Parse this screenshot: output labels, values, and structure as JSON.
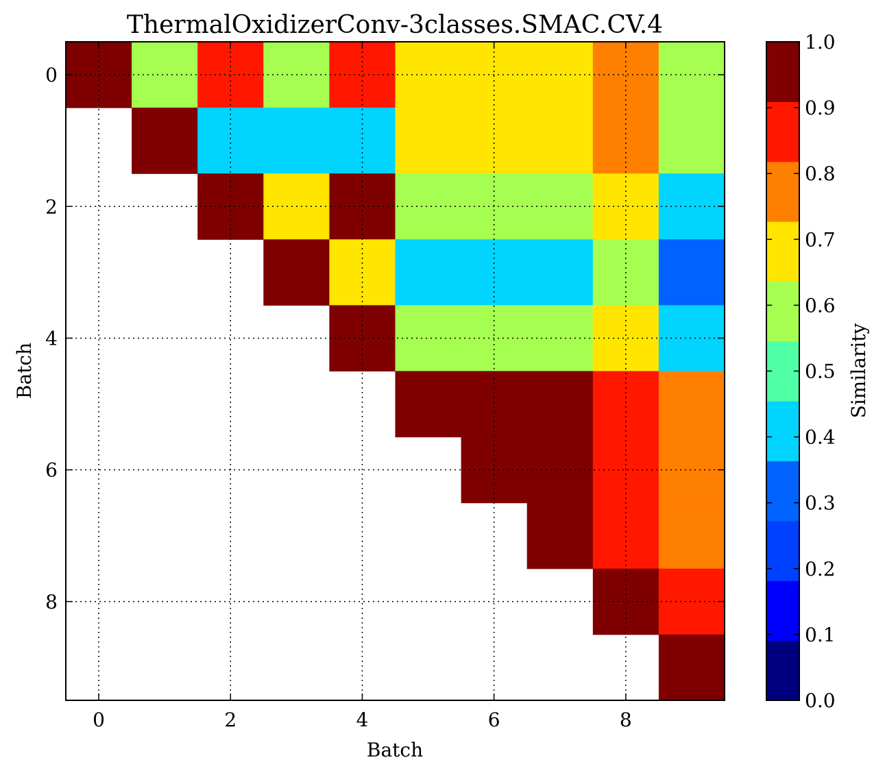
{
  "chart_data": {
    "type": "heatmap",
    "title": "ThermalOxidizerConv-3classes.SMAC.CV.4",
    "xlabel": "Batch",
    "ylabel": "Batch",
    "colorbar_label": "Similarity",
    "x_ticks": [
      "0",
      "2",
      "4",
      "6",
      "8"
    ],
    "y_ticks": [
      "0",
      "2",
      "4",
      "6",
      "8"
    ],
    "colorbar_ticks": [
      "0.0",
      "0.1",
      "0.2",
      "0.3",
      "0.4",
      "0.5",
      "0.6",
      "0.7",
      "0.8",
      "0.9",
      "1.0"
    ],
    "colorbar_range": [
      0.0,
      1.0
    ],
    "colormap_bins": [
      "#00007f",
      "#0000ff",
      "#0040ff",
      "#0062ff",
      "#00d4ff",
      "#50ffa6",
      "#a6ff50",
      "#ffe500",
      "#ff7f00",
      "#ff1700",
      "#7f0000"
    ],
    "grid": true,
    "matrix": [
      [
        0.95,
        0.55,
        0.85,
        0.55,
        0.85,
        0.65,
        0.65,
        0.65,
        0.75,
        0.55
      ],
      [
        null,
        0.95,
        0.45,
        0.45,
        0.45,
        0.65,
        0.65,
        0.65,
        0.75,
        0.55
      ],
      [
        null,
        null,
        0.95,
        0.65,
        0.95,
        0.55,
        0.55,
        0.55,
        0.65,
        0.45
      ],
      [
        null,
        null,
        null,
        0.95,
        0.65,
        0.45,
        0.45,
        0.45,
        0.55,
        0.35
      ],
      [
        null,
        null,
        null,
        null,
        0.95,
        0.55,
        0.55,
        0.55,
        0.65,
        0.45
      ],
      [
        null,
        null,
        null,
        null,
        null,
        0.95,
        0.95,
        0.95,
        0.85,
        0.75
      ],
      [
        null,
        null,
        null,
        null,
        null,
        null,
        0.95,
        0.95,
        0.85,
        0.75
      ],
      [
        null,
        null,
        null,
        null,
        null,
        null,
        null,
        0.95,
        0.85,
        0.75
      ],
      [
        null,
        null,
        null,
        null,
        null,
        null,
        null,
        null,
        0.95,
        0.85
      ],
      [
        null,
        null,
        null,
        null,
        null,
        null,
        null,
        null,
        null,
        0.95
      ]
    ]
  }
}
